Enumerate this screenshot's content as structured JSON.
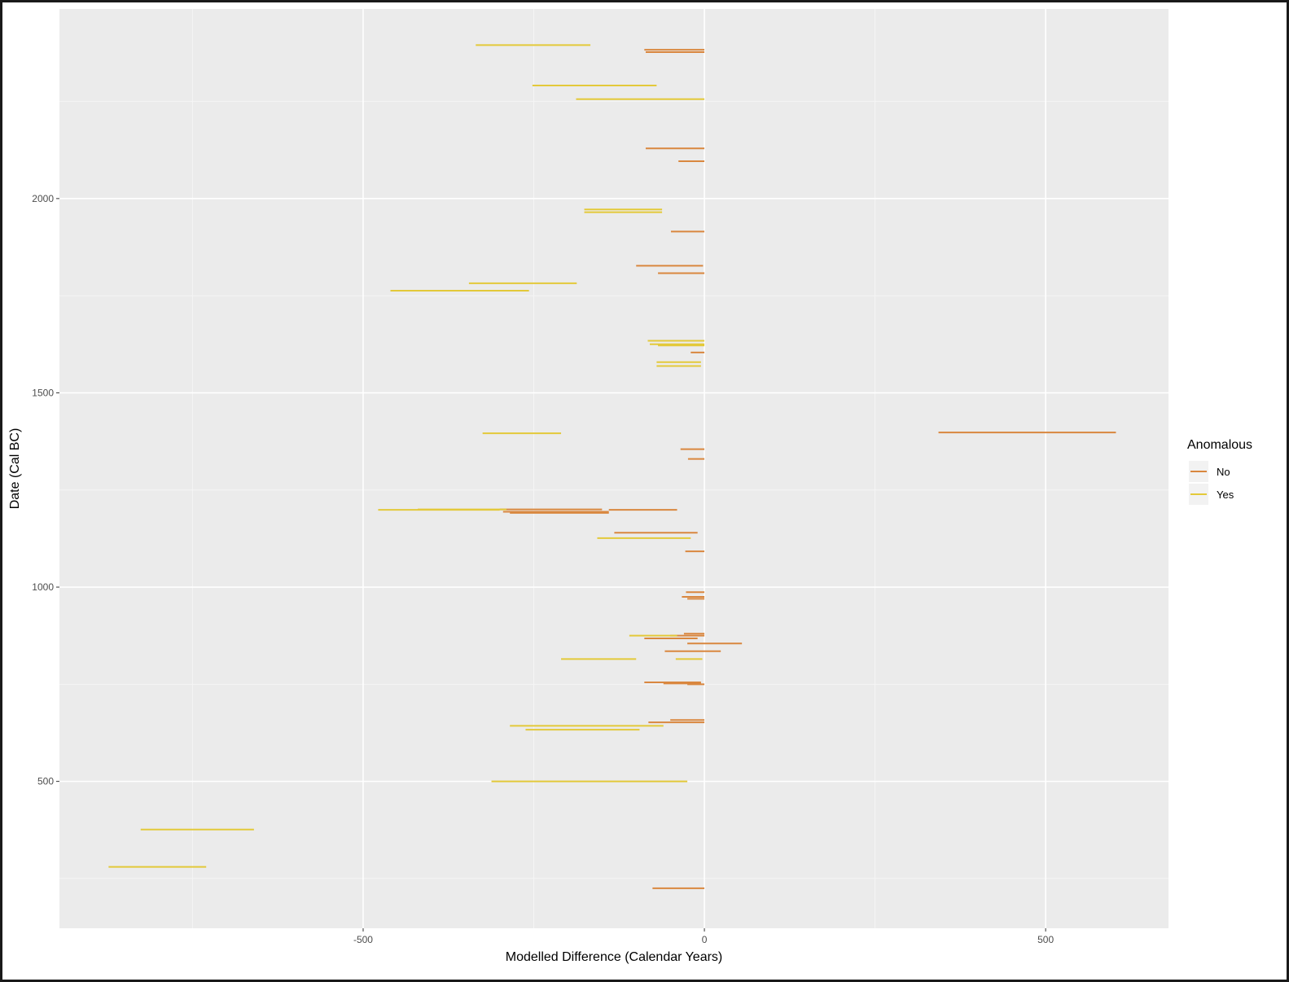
{
  "chart_data": {
    "type": "scatter",
    "mark": "horizontal-segments",
    "title": "",
    "xlabel": "Modelled Difference (Calendar Years)",
    "ylabel": "Date (Cal BC)",
    "xlim": [
      -945,
      680
    ],
    "ylim": [
      122,
      2488
    ],
    "x_ticks": [
      -500,
      0,
      500
    ],
    "y_ticks": [
      500,
      1000,
      1500,
      2000
    ],
    "grid": true,
    "legend": {
      "title": "Anomalous",
      "position": "right",
      "entries": [
        {
          "label": "No",
          "color": "#d9873f"
        },
        {
          "label": "Yes",
          "color": "#e3c93a"
        }
      ]
    },
    "series": [
      {
        "name": "No",
        "color": "#d9873f",
        "segments": [
          {
            "y": 2383,
            "x0": -88,
            "x1": 0
          },
          {
            "y": 2377,
            "x0": -86,
            "x1": 0
          },
          {
            "y": 2129,
            "x0": -86,
            "x1": 0
          },
          {
            "y": 2096,
            "x0": -38,
            "x1": 0
          },
          {
            "y": 1915,
            "x0": -49,
            "x1": 0
          },
          {
            "y": 1827,
            "x0": -100,
            "x1": -2
          },
          {
            "y": 1808,
            "x0": -68,
            "x1": 0
          },
          {
            "y": 1604,
            "x0": -20,
            "x1": 0
          },
          {
            "y": 1398,
            "x0": 343,
            "x1": 603
          },
          {
            "y": 1355,
            "x0": -35,
            "x1": 0
          },
          {
            "y": 1330,
            "x0": -24,
            "x1": 0
          },
          {
            "y": 1200,
            "x0": -300,
            "x1": -150
          },
          {
            "y": 1199,
            "x0": -140,
            "x1": -40
          },
          {
            "y": 1194,
            "x0": -295,
            "x1": -140
          },
          {
            "y": 1191,
            "x0": -285,
            "x1": -140
          },
          {
            "y": 1140,
            "x0": -132,
            "x1": -10
          },
          {
            "y": 1092,
            "x0": -28,
            "x1": 0
          },
          {
            "y": 987,
            "x0": -27,
            "x1": 0
          },
          {
            "y": 975,
            "x0": -33,
            "x1": 0
          },
          {
            "y": 970,
            "x0": -25,
            "x1": 0
          },
          {
            "y": 880,
            "x0": -30,
            "x1": 0
          },
          {
            "y": 875,
            "x0": -50,
            "x1": 0
          },
          {
            "y": 868,
            "x0": -88,
            "x1": -10
          },
          {
            "y": 855,
            "x0": -25,
            "x1": 55
          },
          {
            "y": 835,
            "x0": -58,
            "x1": 24
          },
          {
            "y": 755,
            "x0": -88,
            "x1": -5
          },
          {
            "y": 750,
            "x0": -25,
            "x1": 0
          },
          {
            "y": 752,
            "x0": -60,
            "x1": -5
          },
          {
            "y": 658,
            "x0": -50,
            "x1": 0
          },
          {
            "y": 652,
            "x0": -82,
            "x1": 0
          },
          {
            "y": 225,
            "x0": -76,
            "x1": 0
          }
        ]
      },
      {
        "name": "Yes",
        "color": "#e3c93a",
        "segments": [
          {
            "y": 2395,
            "x0": -335,
            "x1": -167
          },
          {
            "y": 2291,
            "x0": -252,
            "x1": -70
          },
          {
            "y": 2256,
            "x0": -188,
            "x1": 0
          },
          {
            "y": 1972,
            "x0": -176,
            "x1": -62
          },
          {
            "y": 1965,
            "x0": -176,
            "x1": -62
          },
          {
            "y": 1782,
            "x0": -345,
            "x1": -187
          },
          {
            "y": 1763,
            "x0": -460,
            "x1": -257
          },
          {
            "y": 1634,
            "x0": -83,
            "x1": 0
          },
          {
            "y": 1625,
            "x0": -80,
            "x1": 0
          },
          {
            "y": 1622,
            "x0": -68,
            "x1": 0
          },
          {
            "y": 1579,
            "x0": -70,
            "x1": -5
          },
          {
            "y": 1569,
            "x0": -70,
            "x1": -5
          },
          {
            "y": 1396,
            "x0": -325,
            "x1": -210
          },
          {
            "y": 1199,
            "x0": -478,
            "x1": -300
          },
          {
            "y": 1200,
            "x0": -420,
            "x1": -290
          },
          {
            "y": 1126,
            "x0": -157,
            "x1": -20
          },
          {
            "y": 875,
            "x0": -110,
            "x1": -40
          },
          {
            "y": 815,
            "x0": -210,
            "x1": -100
          },
          {
            "y": 815,
            "x0": -42,
            "x1": -3
          },
          {
            "y": 643,
            "x0": -285,
            "x1": -60
          },
          {
            "y": 633,
            "x0": -262,
            "x1": -95
          },
          {
            "y": 500,
            "x0": -312,
            "x1": -25
          },
          {
            "y": 376,
            "x0": -826,
            "x1": -660
          },
          {
            "y": 280,
            "x0": -873,
            "x1": -730
          }
        ]
      }
    ]
  }
}
